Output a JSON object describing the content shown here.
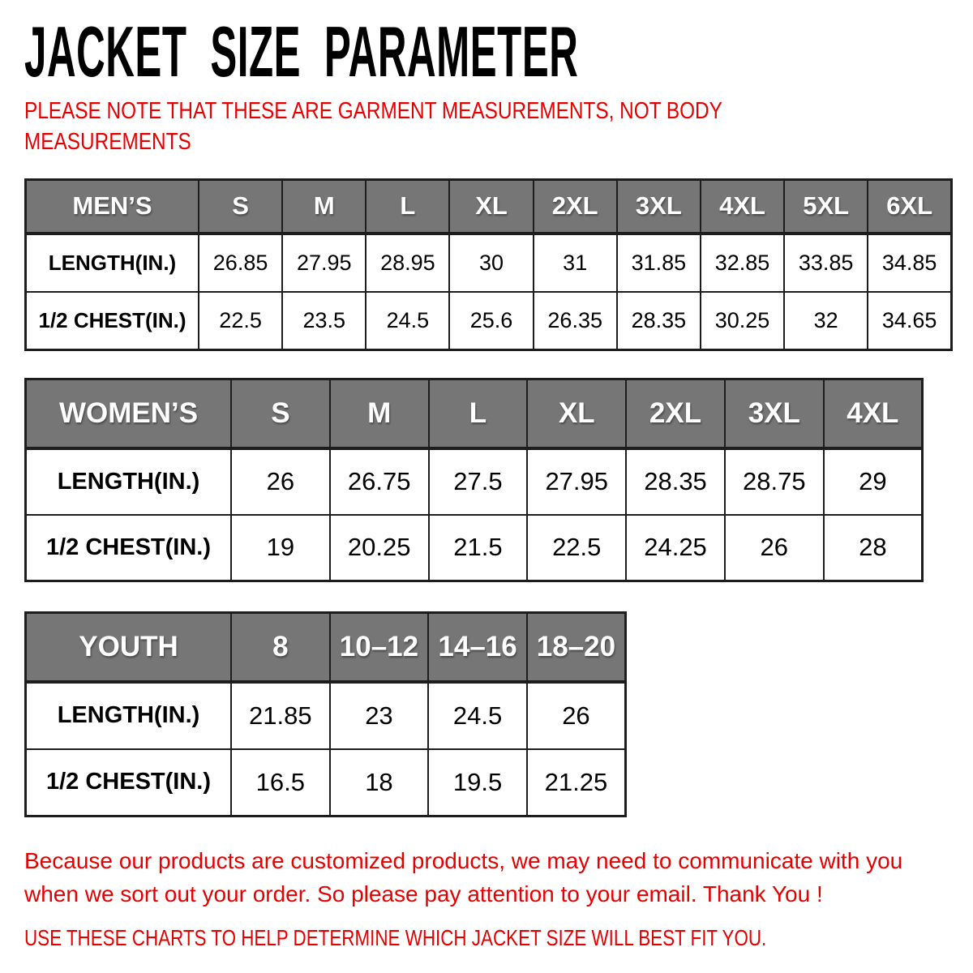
{
  "header": {
    "title": "JACKET SIZE PARAMETER",
    "note": "PLEASE NOTE THAT THESE ARE GARMENT MEASUREMENTS, NOT BODY MEASUREMENTS"
  },
  "footer": {
    "paragraph": "Because our products are customized products, we may need to communicate with you when we sort out your order. So please pay attention to your email. Thank You !",
    "advice": "USE THESE CHARTS TO HELP DETERMINE WHICH JACKET SIZE WILL BEST FIT YOU."
  },
  "colors": {
    "header_bg": "#767676",
    "accent_red": "#e60000",
    "border": "#1d1d1d",
    "header_text": "#ffffff",
    "body_text": "#000000"
  },
  "chart_data": [
    {
      "type": "table",
      "group_label": "MEN’S",
      "size_columns": [
        "S",
        "M",
        "L",
        "XL",
        "2XL",
        "3XL",
        "4XL",
        "5XL",
        "6XL"
      ],
      "rows": [
        {
          "label": "LENGTH(IN.)",
          "values": [
            "26.85",
            "27.95",
            "28.95",
            "30",
            "31",
            "31.85",
            "32.85",
            "33.85",
            "34.85"
          ]
        },
        {
          "label": "1/2 CHEST(IN.)",
          "values": [
            "22.5",
            "23.5",
            "24.5",
            "25.6",
            "26.35",
            "28.35",
            "30.25",
            "32",
            "34.65"
          ]
        }
      ]
    },
    {
      "type": "table",
      "group_label": "WOMEN’S",
      "size_columns": [
        "S",
        "M",
        "L",
        "XL",
        "2XL",
        "3XL",
        "4XL"
      ],
      "rows": [
        {
          "label": "LENGTH(IN.)",
          "values": [
            "26",
            "26.75",
            "27.5",
            "27.95",
            "28.35",
            "28.75",
            "29"
          ]
        },
        {
          "label": "1/2 CHEST(IN.)",
          "values": [
            "19",
            "20.25",
            "21.5",
            "22.5",
            "24.25",
            "26",
            "28"
          ]
        }
      ]
    },
    {
      "type": "table",
      "group_label": "YOUTH",
      "size_columns": [
        "8",
        "10–12",
        "14–16",
        "18–20"
      ],
      "rows": [
        {
          "label": "LENGTH(IN.)",
          "values": [
            "21.85",
            "23",
            "24.5",
            "26"
          ]
        },
        {
          "label": "1/2 CHEST(IN.)",
          "values": [
            "16.5",
            "18",
            "19.5",
            "21.25"
          ]
        }
      ]
    }
  ]
}
